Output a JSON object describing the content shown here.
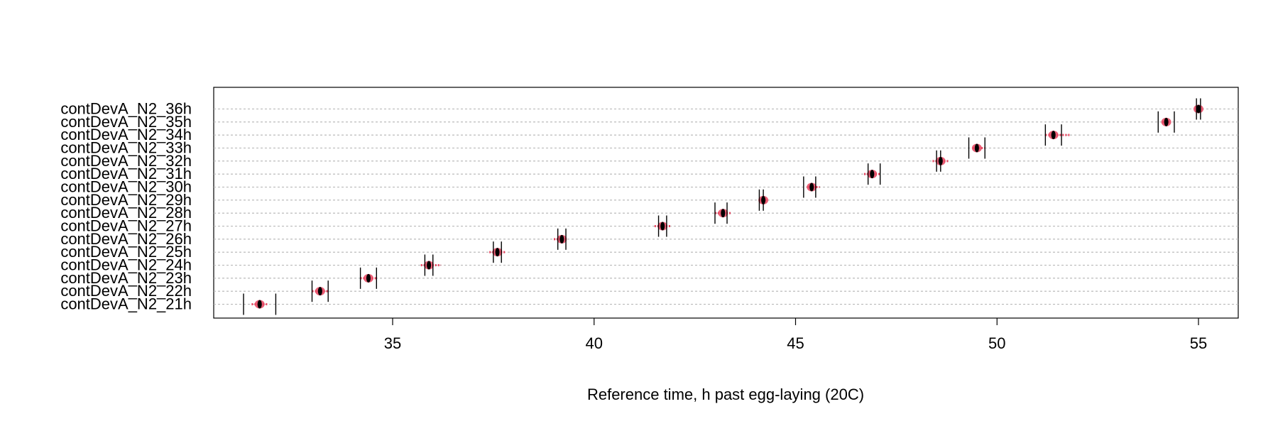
{
  "chart_data": {
    "type": "scatter",
    "title": "",
    "xlabel": "Reference time, h past egg-laying (20C)",
    "ylabel": "",
    "xlim": [
      30.5,
      56.0
    ],
    "x_ticks": [
      35,
      40,
      45,
      50,
      55
    ],
    "x_tick_labels": [
      "35",
      "40",
      "45",
      "50",
      "55"
    ],
    "grid": "horizontal dotted",
    "legend": "none",
    "colors": {
      "density": "#e8445f",
      "point": "#000000",
      "grid": "#b3b3b3",
      "axis": "#000000"
    },
    "series": [
      {
        "categories": [
          "contDevA_N2_21h",
          "contDevA_N2_22h",
          "contDevA_N2_23h",
          "contDevA_N2_24h",
          "contDevA_N2_25h",
          "contDevA_N2_26h",
          "contDevA_N2_27h",
          "contDevA_N2_28h",
          "contDevA_N2_29h",
          "contDevA_N2_30h",
          "contDevA_N2_31h",
          "contDevA_N2_32h",
          "contDevA_N2_33h",
          "contDevA_N2_34h",
          "contDevA_N2_35h",
          "contDevA_N2_36h"
        ],
        "estimate": [
          31.7,
          33.2,
          34.4,
          35.9,
          37.6,
          39.2,
          41.7,
          43.2,
          44.2,
          45.4,
          46.9,
          48.6,
          49.5,
          51.4,
          54.2,
          55.0
        ],
        "ci_low": [
          31.3,
          33.0,
          34.2,
          35.8,
          37.5,
          39.1,
          41.6,
          43.0,
          44.1,
          45.2,
          46.8,
          48.5,
          49.3,
          51.2,
          54.0,
          54.95
        ],
        "ci_high": [
          32.1,
          33.4,
          34.6,
          36.0,
          37.7,
          39.3,
          41.8,
          43.3,
          44.2,
          45.5,
          47.1,
          48.6,
          49.7,
          51.6,
          54.4,
          55.05
        ],
        "density_low": [
          31.5,
          33.0,
          34.2,
          35.7,
          37.4,
          39.0,
          41.5,
          43.0,
          44.1,
          45.3,
          46.7,
          48.4,
          49.4,
          51.2,
          54.1,
          55.0
        ],
        "density_high": [
          31.9,
          33.4,
          34.6,
          36.2,
          37.8,
          39.3,
          41.9,
          43.4,
          44.3,
          45.6,
          47.1,
          48.8,
          49.7,
          51.8,
          54.3,
          55.0
        ]
      }
    ]
  }
}
